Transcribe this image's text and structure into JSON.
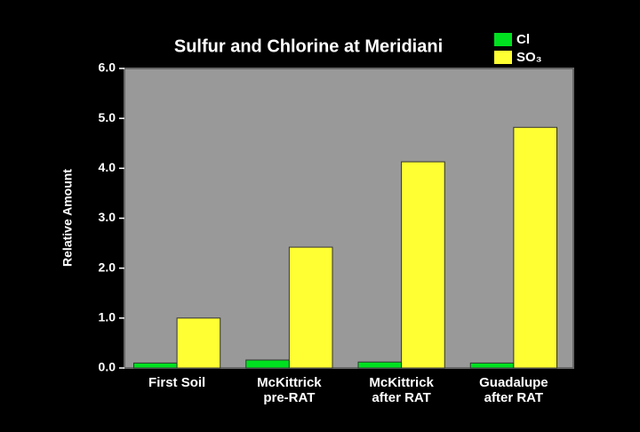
{
  "chart_data": {
    "type": "bar",
    "title": "Sulfur and Chlorine at Meridiani",
    "y_label": "Relative Amount",
    "categories": [
      "First Soil",
      "McKittrick\npre-RAT",
      "McKittrick\nafter RAT",
      "Guadalupe\nafter RAT"
    ],
    "series": [
      {
        "name": "Cl",
        "color": "#00e020",
        "values": [
          0.1,
          0.16,
          0.12,
          0.1
        ]
      },
      {
        "name": "SO₃",
        "color": "#ffff33",
        "values": [
          1.0,
          2.42,
          4.13,
          4.82
        ]
      }
    ],
    "ylim": [
      0,
      6
    ],
    "yticks": [
      {
        "value": 0,
        "label": "0.0"
      },
      {
        "value": 1,
        "label": "1.0"
      },
      {
        "value": 2,
        "label": "2.0"
      },
      {
        "value": 3,
        "label": "3.0"
      },
      {
        "value": 4,
        "label": "4.0"
      },
      {
        "value": 5,
        "label": "5.0"
      },
      {
        "value": 6,
        "label": "6.0"
      }
    ],
    "grid": false,
    "legend": "top-right"
  }
}
